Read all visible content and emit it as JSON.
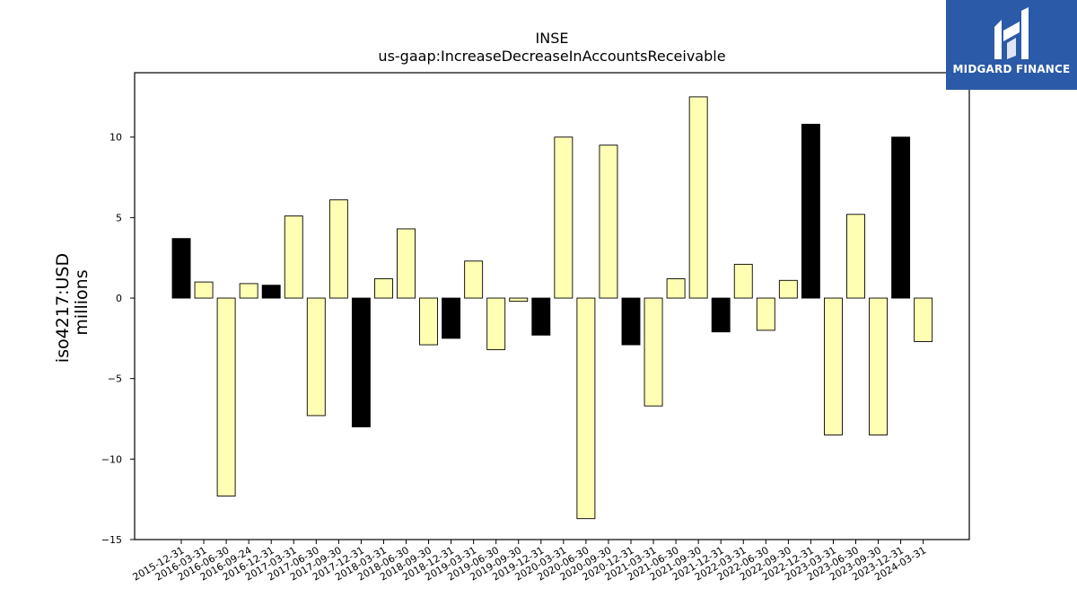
{
  "chart_data": {
    "type": "bar",
    "title": "INSE",
    "subtitle": "us-gaap:IncreaseDecreaseInAccountsReceivable",
    "ylabel": "iso4217:USD",
    "ylabel2": "millions",
    "ylim": [
      -15,
      14
    ],
    "yticks": [
      -15,
      -10,
      -5,
      0,
      5,
      10
    ],
    "ytick_labels": [
      "−15",
      "−10",
      "−5",
      "0",
      "5",
      "10"
    ],
    "grid": false,
    "categories": [
      "2015-12-31",
      "2016-03-31",
      "2016-06-30",
      "2016-09-24",
      "2016-12-31",
      "2017-03-31",
      "2017-06-30",
      "2017-09-30",
      "2017-12-31",
      "2018-03-31",
      "2018-06-30",
      "2018-09-30",
      "2018-12-31",
      "2019-03-31",
      "2019-06-30",
      "2019-09-30",
      "2019-12-31",
      "2020-03-31",
      "2020-06-30",
      "2020-09-30",
      "2020-12-31",
      "2021-03-31",
      "2021-06-30",
      "2021-09-30",
      "2021-12-31",
      "2022-03-31",
      "2022-06-30",
      "2022-09-30",
      "2022-12-31",
      "2023-03-31",
      "2023-06-30",
      "2023-09-30",
      "2023-12-31",
      "2024-03-31"
    ],
    "values": [
      3.7,
      1.0,
      -12.3,
      0.9,
      0.8,
      5.1,
      -7.3,
      6.1,
      -8.0,
      1.2,
      4.3,
      -2.9,
      -2.5,
      2.3,
      -3.2,
      -0.2,
      -2.3,
      10.0,
      -13.7,
      9.5,
      -2.9,
      -6.7,
      1.2,
      12.5,
      -2.1,
      2.1,
      -2.0,
      1.1,
      10.8,
      -8.5,
      5.2,
      -8.5,
      10.0,
      -2.7
    ],
    "bar_colors": [
      "#000000",
      "#ffffb3",
      "#ffffb3",
      "#ffffb3",
      "#000000",
      "#ffffb3",
      "#ffffb3",
      "#ffffb3",
      "#000000",
      "#ffffb3",
      "#ffffb3",
      "#ffffb3",
      "#000000",
      "#ffffb3",
      "#ffffb3",
      "#ffffb3",
      "#000000",
      "#ffffb3",
      "#ffffb3",
      "#ffffb3",
      "#000000",
      "#ffffb3",
      "#ffffb3",
      "#ffffb3",
      "#000000",
      "#ffffb3",
      "#ffffb3",
      "#ffffb3",
      "#000000",
      "#ffffb3",
      "#ffffb3",
      "#ffffb3",
      "#000000",
      "#ffffb3"
    ]
  },
  "logo": {
    "brand": "MIDGARD FINANCE",
    "background": "#2b5aa8"
  }
}
